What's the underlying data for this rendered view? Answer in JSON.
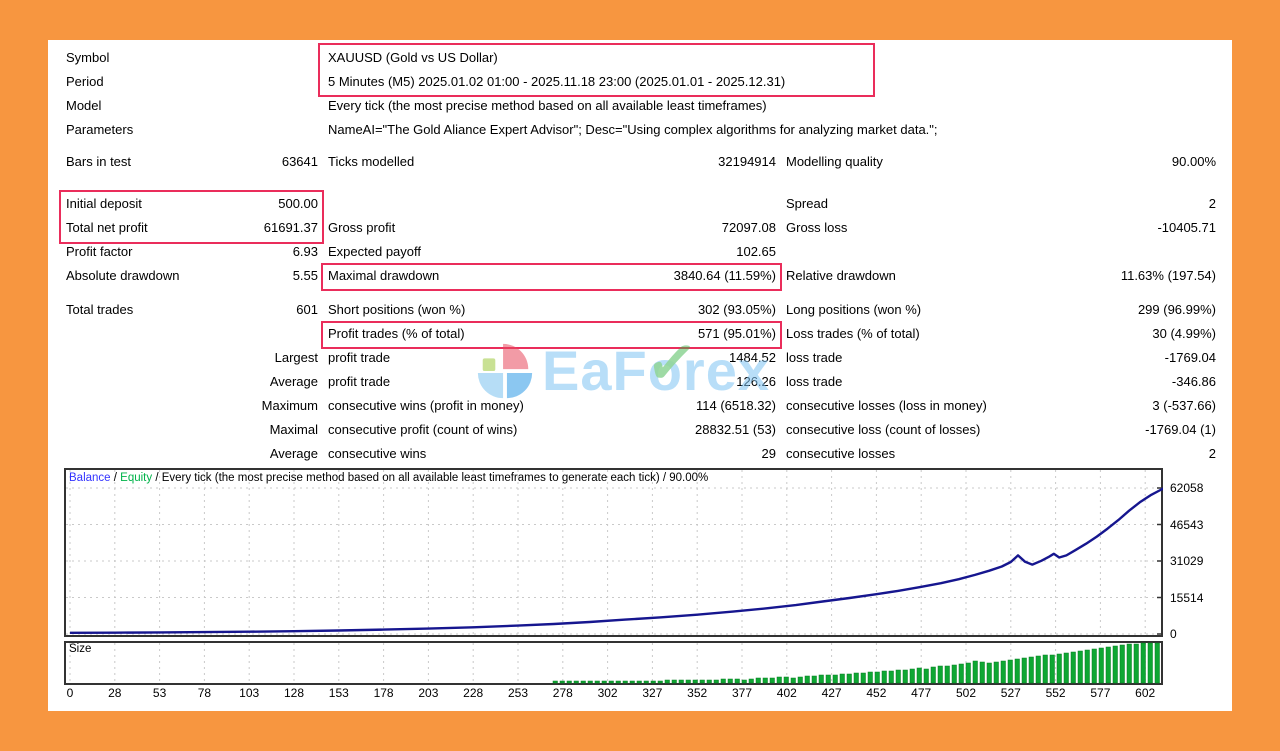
{
  "report": {
    "info_rows": [
      {
        "label": "Symbol",
        "value": "XAUUSD (Gold vs US Dollar)"
      },
      {
        "label": "Period",
        "value": "5 Minutes (M5) 2025.01.02 01:00 - 2025.11.18 23:00 (2025.01.01 - 2025.12.31)"
      },
      {
        "label": "Model",
        "value": "Every tick (the most precise method based on all available least timeframes)"
      },
      {
        "label": "Parameters",
        "value": "NameAI=\"The Gold Aliance Expert Advisor\"; Desc=\"Using complex algorithms for analyzing market data.\";"
      }
    ],
    "stat_rows": [
      {
        "c1l": "Bars in test",
        "c1v": "63641",
        "c2l": "Ticks modelled",
        "c2v": "32194914",
        "c3l": "Modelling quality",
        "c3v": "90.00%"
      },
      {
        "c1l": "Initial deposit",
        "c1v": "500.00",
        "c2l": "",
        "c2v": "",
        "c3l": "Spread",
        "c3v": "2"
      },
      {
        "c1l": "Total net profit",
        "c1v": "61691.37",
        "c2l": "Gross profit",
        "c2v": "72097.08",
        "c3l": "Gross loss",
        "c3v": "-10405.71"
      },
      {
        "c1l": "Profit factor",
        "c1v": "6.93",
        "c2l": "Expected payoff",
        "c2v": "102.65",
        "c3l": "",
        "c3v": ""
      },
      {
        "c1l": "Absolute drawdown",
        "c1v": "5.55",
        "c2l": "Maximal drawdown",
        "c2v": "3840.64 (11.59%)",
        "c3l": "Relative drawdown",
        "c3v": "11.63% (197.54)"
      },
      {
        "c1l": "Total trades",
        "c1v": "601",
        "c2l": "Short positions (won %)",
        "c2v": "302 (93.05%)",
        "c3l": "Long positions (won %)",
        "c3v": "299 (96.99%)"
      },
      {
        "c1l": "",
        "c1v": "",
        "c2l": "Profit trades (% of total)",
        "c2v": "571 (95.01%)",
        "c3l": "Loss trades (% of total)",
        "c3v": "30 (4.99%)"
      },
      {
        "c1l": "",
        "c1v": "Largest",
        "c2l": "profit trade",
        "c2v": "1484.52",
        "c3l": "loss trade",
        "c3v": "-1769.04"
      },
      {
        "c1l": "",
        "c1v": "Average",
        "c2l": "profit trade",
        "c2v": "126.26",
        "c3l": "loss trade",
        "c3v": "-346.86"
      },
      {
        "c1l": "",
        "c1v": "Maximum",
        "c2l": "consecutive wins (profit in money)",
        "c2v": "114 (6518.32)",
        "c3l": "consecutive losses (loss in money)",
        "c3v": "3 (-537.66)"
      },
      {
        "c1l": "",
        "c1v": "Maximal",
        "c2l": "consecutive profit (count of wins)",
        "c2v": "28832.51 (53)",
        "c3l": "consecutive loss (count of losses)",
        "c3v": "-1769.04 (1)"
      },
      {
        "c1l": "",
        "c1v": "Average",
        "c2l": "consecutive wins",
        "c2v": "29",
        "c3l": "consecutive losses",
        "c3v": "2"
      }
    ]
  },
  "watermark": {
    "text": "EaForex",
    "check": "✓"
  },
  "chart_data": {
    "type": "line",
    "legend": {
      "balance_label": "Balance",
      "equity_label": "Equity",
      "separator": " / ",
      "description": "Every tick (the most precise method based on all available least timeframes to generate each tick) / 90.00%"
    },
    "y_ticks": [
      62058,
      46543,
      31029,
      15514,
      0
    ],
    "y_max": 62058,
    "x_ticks": [
      0,
      28,
      53,
      78,
      103,
      128,
      153,
      178,
      203,
      228,
      253,
      278,
      302,
      327,
      352,
      377,
      402,
      427,
      452,
      477,
      502,
      527,
      552,
      577,
      602
    ],
    "x_max": 611,
    "balance_series": [
      [
        0,
        500
      ],
      [
        25,
        560
      ],
      [
        50,
        660
      ],
      [
        75,
        800
      ],
      [
        100,
        980
      ],
      [
        125,
        1200
      ],
      [
        150,
        1500
      ],
      [
        175,
        1850
      ],
      [
        200,
        2300
      ],
      [
        225,
        2850
      ],
      [
        250,
        3550
      ],
      [
        270,
        4250
      ],
      [
        290,
        5100
      ],
      [
        310,
        6100
      ],
      [
        330,
        7100
      ],
      [
        350,
        8200
      ],
      [
        370,
        9500
      ],
      [
        390,
        11000
      ],
      [
        405,
        12300
      ],
      [
        420,
        13800
      ],
      [
        435,
        15300
      ],
      [
        450,
        16900
      ],
      [
        462,
        18300
      ],
      [
        474,
        19900
      ],
      [
        486,
        21600
      ],
      [
        496,
        23300
      ],
      [
        505,
        25100
      ],
      [
        513,
        26900
      ],
      [
        520,
        28700
      ],
      [
        525,
        30600
      ],
      [
        529,
        33400
      ],
      [
        533,
        30700
      ],
      [
        537,
        29500
      ],
      [
        542,
        31100
      ],
      [
        546,
        32700
      ],
      [
        549,
        34100
      ],
      [
        552,
        32500
      ],
      [
        556,
        33400
      ],
      [
        561,
        35600
      ],
      [
        567,
        38400
      ],
      [
        573,
        41400
      ],
      [
        579,
        44800
      ],
      [
        585,
        48400
      ],
      [
        591,
        52400
      ],
      [
        597,
        56000
      ],
      [
        603,
        59000
      ],
      [
        608,
        61000
      ],
      [
        611,
        62191
      ]
    ],
    "size_panel": {
      "label": "Size",
      "bar_values": [
        2,
        2,
        2,
        2,
        2,
        2,
        2,
        2,
        2,
        2,
        2,
        2,
        2,
        2,
        2,
        2,
        3,
        3,
        3,
        3,
        3,
        3,
        3,
        3,
        4,
        4,
        4,
        3,
        4,
        5,
        5,
        5,
        6,
        6,
        5,
        6,
        7,
        7,
        8,
        8,
        8,
        9,
        9,
        10,
        10,
        11,
        11,
        12,
        12,
        13,
        13,
        14,
        15,
        14,
        16,
        17,
        17,
        18,
        19,
        20,
        22,
        21,
        20,
        21,
        22,
        23,
        24,
        25,
        26,
        27,
        28,
        28,
        29,
        30,
        31,
        32,
        33,
        34,
        35,
        36,
        37,
        38,
        39,
        39,
        40,
        40,
        40
      ]
    },
    "colors": {
      "balance_line": "#16168f",
      "balance_label": "#3333ff",
      "equity_label": "#00b34a",
      "bars": "#0ea733",
      "bars_edge": "#067d20",
      "grid": "#c9c9c9",
      "frame": "#333333",
      "highlight": "#ea2d5b",
      "page_bg": "#f79640"
    }
  }
}
